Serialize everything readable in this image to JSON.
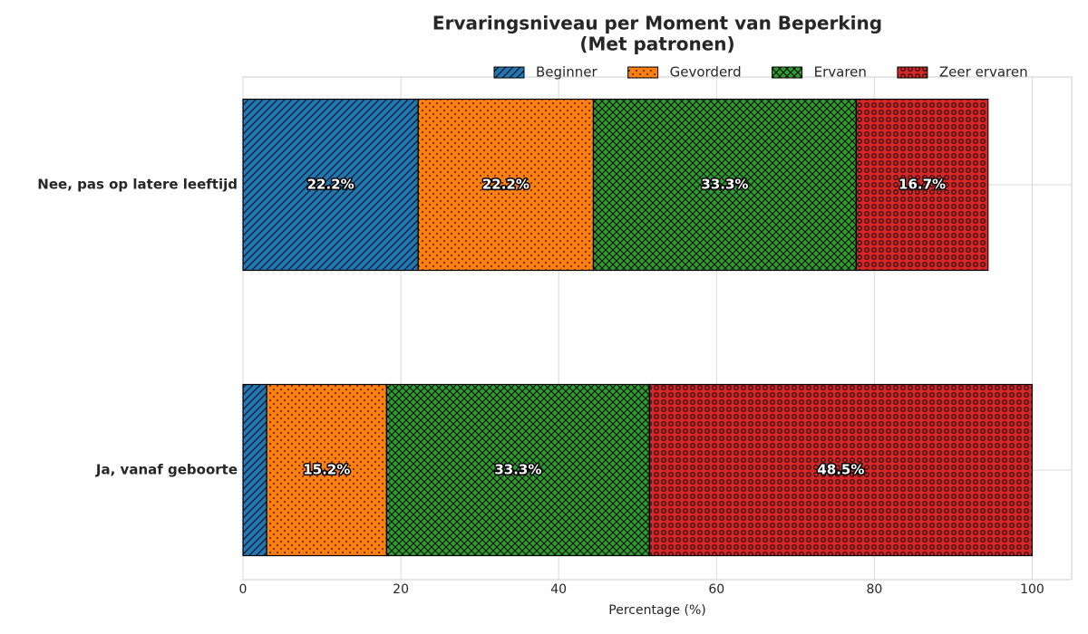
{
  "chart_data": {
    "type": "stacked-barh",
    "title": "Ervaringsniveau per Moment van Beperking",
    "subtitle": "(Met patronen)",
    "x_label": "Percentage (%)",
    "categories": [
      "Ja, vanaf geboorte",
      "Nee, pas op latere leeftijd"
    ],
    "series": [
      {
        "name": "Beginner",
        "color": "#1f77b4",
        "hatch": "//",
        "values": [
          3.0,
          22.2
        ],
        "value_labels": [
          null,
          "22.2%"
        ]
      },
      {
        "name": "Gevorderd",
        "color": "#ff7f0e",
        "hatch": "..",
        "values": [
          15.2,
          22.2
        ],
        "value_labels": [
          "15.2%",
          "22.2%"
        ]
      },
      {
        "name": "Ervaren",
        "color": "#2ca02c",
        "hatch": "xx",
        "values": [
          33.3,
          33.3
        ],
        "value_labels": [
          "33.3%",
          "33.3%"
        ]
      },
      {
        "name": "Zeer ervaren",
        "color": "#d62728",
        "hatch": "oo",
        "values": [
          48.5,
          16.7
        ],
        "value_labels": [
          "48.5%",
          "16.7%"
        ]
      }
    ],
    "xlim": [
      0,
      105
    ],
    "xticks": [
      0,
      20,
      40,
      60,
      80,
      100
    ],
    "grid": true,
    "legend": "upper right"
  }
}
